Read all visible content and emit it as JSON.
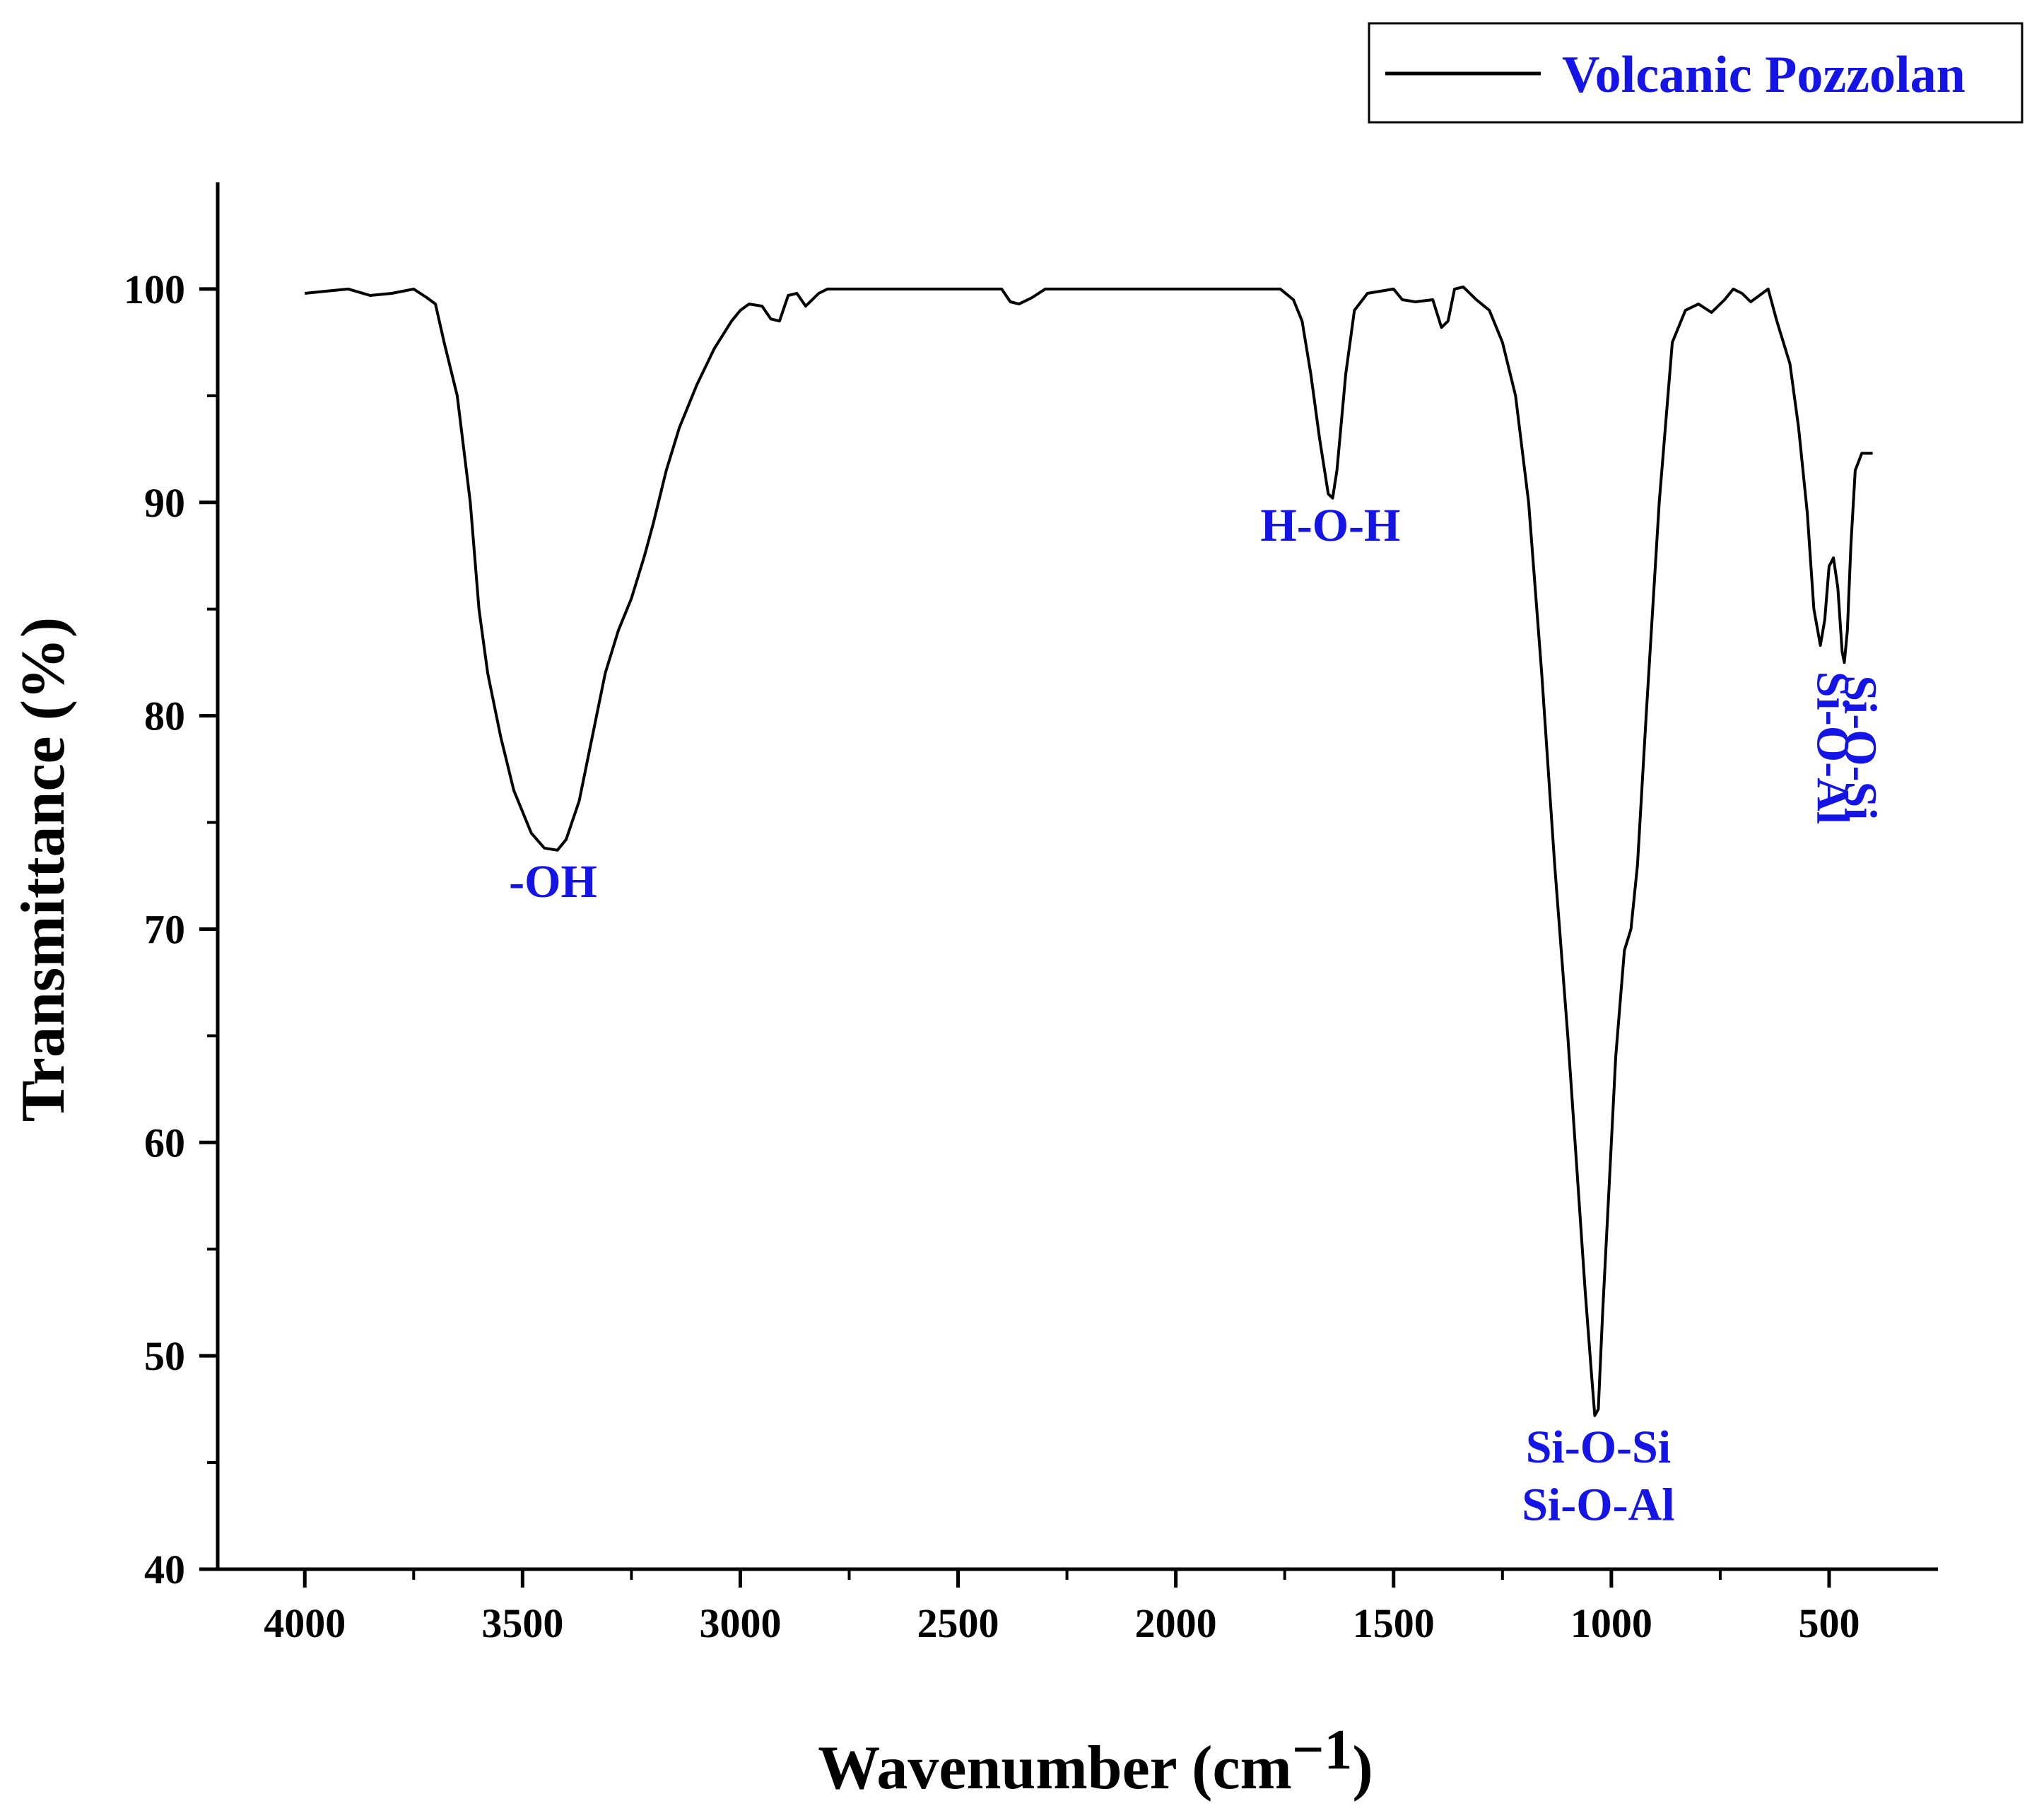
{
  "chart_data": {
    "type": "line",
    "title": "",
    "xlabel": "Wavenumber (cm",
    "xlabel_superscript": "−1",
    "ylabel": "Transmittance (%)",
    "xlim": [
      4200,
      250
    ],
    "ylim": [
      40,
      105
    ],
    "x_ticks": [
      4000,
      3500,
      3000,
      2500,
      2000,
      1500,
      1000,
      500
    ],
    "y_ticks": [
      40,
      50,
      60,
      70,
      80,
      90,
      100
    ],
    "grid": false,
    "legend_position": "top-right",
    "colors": {
      "line": "#000000",
      "annotation": "#1414e6",
      "axis": "#000000"
    },
    "series": [
      {
        "name": "Volcanic Pozzolan",
        "points": [
          [
            4000,
            99.8
          ],
          [
            3950,
            99.9
          ],
          [
            3900,
            100.0
          ],
          [
            3850,
            99.7
          ],
          [
            3800,
            99.8
          ],
          [
            3750,
            100.0
          ],
          [
            3720,
            99.6
          ],
          [
            3700,
            99.3
          ],
          [
            3680,
            97.5
          ],
          [
            3650,
            95.0
          ],
          [
            3620,
            90.0
          ],
          [
            3600,
            85.0
          ],
          [
            3580,
            82.0
          ],
          [
            3550,
            79.0
          ],
          [
            3520,
            76.5
          ],
          [
            3480,
            74.5
          ],
          [
            3450,
            73.8
          ],
          [
            3420,
            73.7
          ],
          [
            3400,
            74.2
          ],
          [
            3370,
            76.0
          ],
          [
            3340,
            79.0
          ],
          [
            3310,
            82.0
          ],
          [
            3280,
            84.0
          ],
          [
            3250,
            85.5
          ],
          [
            3220,
            87.5
          ],
          [
            3200,
            89.0
          ],
          [
            3170,
            91.5
          ],
          [
            3140,
            93.5
          ],
          [
            3100,
            95.5
          ],
          [
            3060,
            97.2
          ],
          [
            3020,
            98.5
          ],
          [
            3000,
            99.0
          ],
          [
            2980,
            99.3
          ],
          [
            2950,
            99.2
          ],
          [
            2930,
            98.6
          ],
          [
            2910,
            98.5
          ],
          [
            2890,
            99.7
          ],
          [
            2870,
            99.8
          ],
          [
            2850,
            99.2
          ],
          [
            2820,
            99.8
          ],
          [
            2800,
            100.0
          ],
          [
            2600,
            100.0
          ],
          [
            2400,
            100.0
          ],
          [
            2380,
            99.4
          ],
          [
            2360,
            99.3
          ],
          [
            2330,
            99.6
          ],
          [
            2300,
            100.0
          ],
          [
            2000,
            100.0
          ],
          [
            1800,
            100.0
          ],
          [
            1760,
            100.0
          ],
          [
            1730,
            99.5
          ],
          [
            1710,
            98.5
          ],
          [
            1690,
            96.0
          ],
          [
            1670,
            93.0
          ],
          [
            1650,
            90.4
          ],
          [
            1640,
            90.2
          ],
          [
            1630,
            91.5
          ],
          [
            1610,
            96.0
          ],
          [
            1590,
            99.0
          ],
          [
            1560,
            99.8
          ],
          [
            1500,
            100.0
          ],
          [
            1480,
            99.5
          ],
          [
            1450,
            99.4
          ],
          [
            1410,
            99.5
          ],
          [
            1390,
            98.2
          ],
          [
            1375,
            98.5
          ],
          [
            1360,
            100.0
          ],
          [
            1340,
            100.1
          ],
          [
            1310,
            99.5
          ],
          [
            1280,
            99.0
          ],
          [
            1250,
            97.5
          ],
          [
            1220,
            95.0
          ],
          [
            1190,
            90.0
          ],
          [
            1160,
            82.0
          ],
          [
            1130,
            73.0
          ],
          [
            1100,
            65.0
          ],
          [
            1080,
            59.0
          ],
          [
            1060,
            53.0
          ],
          [
            1045,
            49.0
          ],
          [
            1038,
            47.2
          ],
          [
            1030,
            47.5
          ],
          [
            1020,
            52.0
          ],
          [
            1005,
            58.0
          ],
          [
            990,
            64.0
          ],
          [
            970,
            69.0
          ],
          [
            955,
            70.0
          ],
          [
            940,
            73.0
          ],
          [
            920,
            80.0
          ],
          [
            890,
            90.0
          ],
          [
            860,
            97.5
          ],
          [
            830,
            99.0
          ],
          [
            800,
            99.3
          ],
          [
            770,
            98.9
          ],
          [
            740,
            99.5
          ],
          [
            720,
            100.0
          ],
          [
            700,
            99.8
          ],
          [
            680,
            99.4
          ],
          [
            660,
            99.7
          ],
          [
            640,
            100.0
          ],
          [
            620,
            98.5
          ],
          [
            590,
            96.5
          ],
          [
            570,
            93.5
          ],
          [
            550,
            89.5
          ],
          [
            535,
            85.0
          ],
          [
            520,
            83.3
          ],
          [
            510,
            84.5
          ],
          [
            500,
            87.0
          ],
          [
            490,
            87.4
          ],
          [
            480,
            86.0
          ],
          [
            470,
            83.0
          ],
          [
            465,
            82.5
          ],
          [
            458,
            84.0
          ],
          [
            450,
            88.0
          ],
          [
            440,
            91.5
          ],
          [
            425,
            92.3
          ],
          [
            400,
            92.3
          ]
        ]
      }
    ],
    "annotations": [
      {
        "text": "-OH",
        "x": 3430,
        "y": 71.5,
        "rotated": false
      },
      {
        "text": "H-O-H",
        "x": 1645,
        "y": 88.2,
        "rotated": false
      },
      {
        "text": "Si-O-Si",
        "x": 1030,
        "y": 45.0,
        "rotated": false
      },
      {
        "text": "Si-O-Al",
        "x": 1030,
        "y": 42.3,
        "rotated": false
      },
      {
        "text": "Si-O-Al",
        "x": 527,
        "y": 78.5,
        "rotated": true
      },
      {
        "text": "Si-O-Si",
        "x": 463,
        "y": 78.5,
        "rotated": true
      }
    ]
  }
}
